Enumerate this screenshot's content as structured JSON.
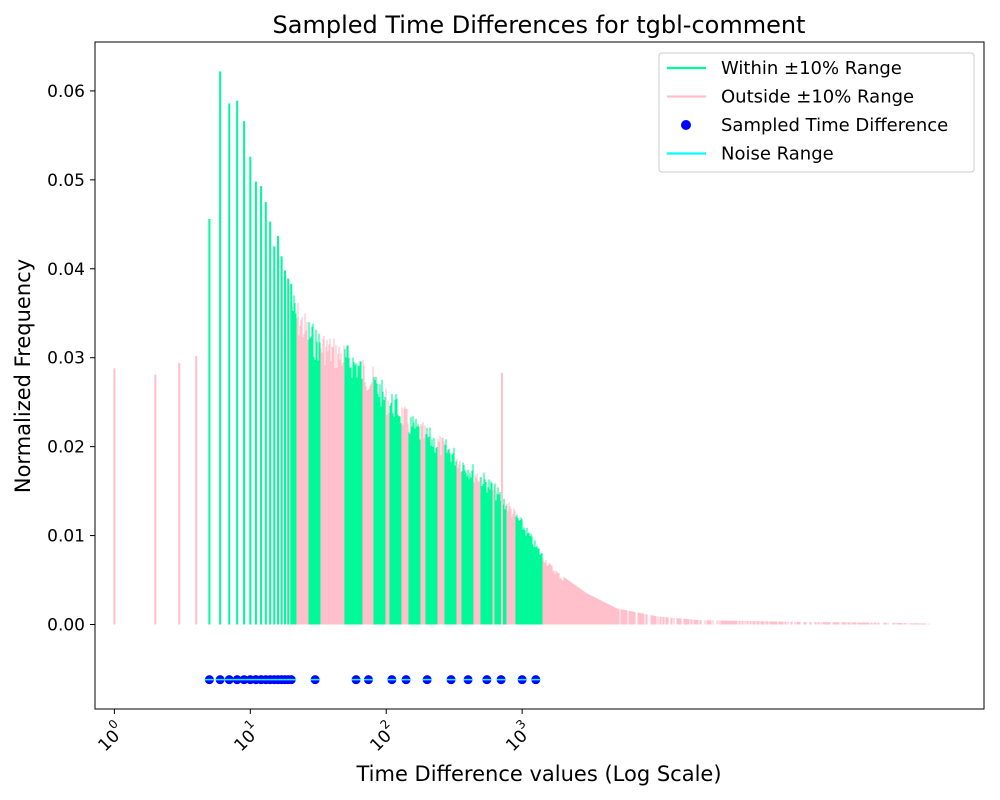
{
  "chart_data": {
    "type": "bar",
    "title": "Sampled Time Differences for tgbl-comment",
    "xlabel": "Time Difference values (Log Scale)",
    "ylabel": "Normalized Frequency",
    "xscale": "log",
    "xlim": [
      0.72,
      2500000
    ],
    "ylim": [
      -0.0095,
      0.0655
    ],
    "yticks": [
      "0.00",
      "0.01",
      "0.02",
      "0.03",
      "0.04",
      "0.05",
      "0.06"
    ],
    "xticks": [
      {
        "base": "10",
        "exp": "0"
      },
      {
        "base": "10",
        "exp": "1"
      },
      {
        "base": "10",
        "exp": "2"
      },
      {
        "base": "10",
        "exp": "3"
      }
    ],
    "grid": false,
    "legend_position": "top-right",
    "colors": {
      "within": "#00fa9a",
      "outside": "#ffc0cb",
      "sampled": "#0000ff",
      "noise": "#00ffff"
    },
    "legend": [
      {
        "label": "Within ±10% Range",
        "kind": "line",
        "color": "#00fa9a"
      },
      {
        "label": "Outside ±10% Range",
        "kind": "line",
        "color": "#ffc0cb"
      },
      {
        "label": "Sampled Time Difference",
        "kind": "marker",
        "color": "#0000ff"
      },
      {
        "label": "Noise Range",
        "kind": "line",
        "color": "#00ffff"
      }
    ],
    "discrete_bars": [
      {
        "x": 1,
        "y": 0.0288,
        "range": "outside"
      },
      {
        "x": 2,
        "y": 0.0281,
        "range": "outside"
      },
      {
        "x": 3,
        "y": 0.0294,
        "range": "outside"
      },
      {
        "x": 4,
        "y": 0.0302,
        "range": "outside"
      },
      {
        "x": 5,
        "y": 0.0456,
        "range": "within"
      },
      {
        "x": 6,
        "y": 0.0622,
        "range": "within"
      },
      {
        "x": 7,
        "y": 0.0586,
        "range": "within"
      },
      {
        "x": 8,
        "y": 0.0589,
        "range": "within"
      },
      {
        "x": 9,
        "y": 0.0566,
        "range": "within"
      },
      {
        "x": 10,
        "y": 0.0526,
        "range": "within"
      },
      {
        "x": 11,
        "y": 0.0498,
        "range": "within"
      },
      {
        "x": 12,
        "y": 0.0493,
        "range": "within"
      },
      {
        "x": 13,
        "y": 0.0475,
        "range": "within"
      },
      {
        "x": 14,
        "y": 0.0453,
        "range": "within"
      },
      {
        "x": 15,
        "y": 0.0425,
        "range": "within"
      },
      {
        "x": 16,
        "y": 0.0437,
        "range": "within"
      },
      {
        "x": 17,
        "y": 0.0414,
        "range": "within"
      },
      {
        "x": 18,
        "y": 0.0398,
        "range": "within"
      },
      {
        "x": 19,
        "y": 0.0389,
        "range": "within"
      },
      {
        "x": 20,
        "y": 0.0383,
        "range": "within"
      }
    ],
    "distribution_profile": [
      {
        "x": 20,
        "y": 0.0383
      },
      {
        "x": 22,
        "y": 0.0367
      },
      {
        "x": 25,
        "y": 0.0354
      },
      {
        "x": 30,
        "y": 0.0337
      },
      {
        "x": 40,
        "y": 0.0326
      },
      {
        "x": 50,
        "y": 0.0318
      },
      {
        "x": 60,
        "y": 0.031
      },
      {
        "x": 80,
        "y": 0.0291
      },
      {
        "x": 100,
        "y": 0.0268
      },
      {
        "x": 120,
        "y": 0.0259
      },
      {
        "x": 150,
        "y": 0.0238
      },
      {
        "x": 200,
        "y": 0.0224
      },
      {
        "x": 300,
        "y": 0.0205
      },
      {
        "x": 400,
        "y": 0.0186
      },
      {
        "x": 500,
        "y": 0.0175
      },
      {
        "x": 600,
        "y": 0.0163
      },
      {
        "x": 800,
        "y": 0.014
      },
      {
        "x": 1000,
        "y": 0.0119
      },
      {
        "x": 1300,
        "y": 0.009
      },
      {
        "x": 1600,
        "y": 0.007
      },
      {
        "x": 2000,
        "y": 0.0054
      },
      {
        "x": 3000,
        "y": 0.0035
      },
      {
        "x": 5000,
        "y": 0.0018
      },
      {
        "x": 10000,
        "y": 0.0009
      },
      {
        "x": 20000,
        "y": 0.0005
      },
      {
        "x": 100000,
        "y": 0.0003
      },
      {
        "x": 500000,
        "y": 0.0002
      },
      {
        "x": 1000000,
        "y": 0.0001
      }
    ],
    "spike": {
      "x": 710,
      "y": 0.0283
    },
    "within_ranges": [
      [
        20,
        22
      ],
      [
        27,
        33
      ],
      [
        49,
        67
      ],
      [
        81,
        99
      ],
      [
        105,
        130
      ],
      [
        147,
        180
      ],
      [
        195,
        238
      ],
      [
        268,
        330
      ],
      [
        360,
        440
      ],
      [
        495,
        605
      ],
      [
        630,
        770
      ],
      [
        900,
        1100
      ],
      [
        1080,
        1400
      ]
    ],
    "sampled_points": {
      "y": -0.0062,
      "x": [
        5,
        6,
        7,
        8,
        9,
        10,
        11,
        12,
        13,
        14,
        15,
        16,
        17,
        18,
        19,
        20,
        30,
        60,
        74,
        110,
        140,
        200,
        300,
        400,
        550,
        700,
        1000,
        1260
      ]
    }
  }
}
